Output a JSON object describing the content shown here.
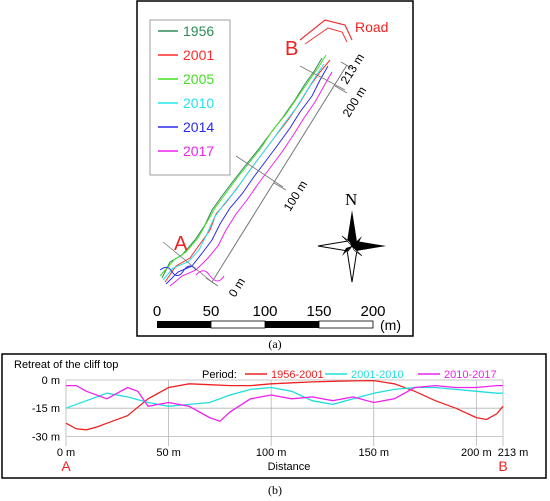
{
  "map": {
    "legend": [
      {
        "year": "1956",
        "color": "#2e8b57"
      },
      {
        "year": "2001",
        "color": "#ff2a2a"
      },
      {
        "year": "2005",
        "color": "#44dd22"
      },
      {
        "year": "2010",
        "color": "#22e5f0"
      },
      {
        "year": "2014",
        "color": "#2a2aee"
      },
      {
        "year": "2017",
        "color": "#ee22ee"
      }
    ],
    "road_label": "Road",
    "point_a": "A",
    "point_b": "B",
    "transect_ticks": [
      "0 m",
      "100 m",
      "200 m",
      "213 m"
    ],
    "north_label": "N",
    "scale_ticks": [
      "0",
      "50",
      "100",
      "150",
      "200"
    ],
    "scale_unit": "(m)"
  },
  "caption_a": "(a)",
  "caption_b": "(b)",
  "chart_data": {
    "type": "line",
    "title": "Retreat of the cliff top",
    "legend_title": "Period:",
    "xlabel": "Distance",
    "x_ticks": [
      "0 m",
      "50 m",
      "100 m",
      "150 m",
      "200 m",
      "213 m"
    ],
    "y_ticks": [
      "0 m",
      "-15 m",
      "-30 m"
    ],
    "xlim": [
      0,
      213
    ],
    "ylim": [
      -33,
      0
    ],
    "grid": true,
    "start_label": "A",
    "end_label": "B",
    "series": [
      {
        "name": "1956-2001",
        "color": "#ee2222",
        "x": [
          0,
          5,
          10,
          15,
          20,
          30,
          40,
          50,
          60,
          70,
          80,
          90,
          100,
          110,
          120,
          130,
          140,
          150,
          160,
          170,
          180,
          190,
          200,
          205,
          210,
          213
        ],
        "y": [
          -23,
          -26,
          -26.5,
          -25,
          -23,
          -19,
          -10,
          -4,
          -2,
          -2.5,
          -3,
          -3,
          -2,
          -1.5,
          -1,
          -0.7,
          -0.5,
          -0.3,
          -2,
          -6,
          -11,
          -15,
          -20,
          -21,
          -18,
          -14
        ]
      },
      {
        "name": "2001-2010",
        "color": "#22dddd",
        "x": [
          0,
          10,
          20,
          30,
          40,
          50,
          60,
          70,
          80,
          90,
          100,
          110,
          120,
          130,
          140,
          150,
          160,
          170,
          180,
          190,
          200,
          210,
          213
        ],
        "y": [
          -15,
          -11,
          -7,
          -9,
          -12,
          -14,
          -13,
          -12,
          -8,
          -5,
          -4,
          -6,
          -11,
          -13,
          -10,
          -7,
          -5,
          -4,
          -4,
          -5,
          -6,
          -7,
          -7
        ]
      },
      {
        "name": "2010-2017",
        "color": "#ee22ee",
        "x": [
          0,
          5,
          10,
          20,
          30,
          35,
          40,
          50,
          60,
          70,
          75,
          80,
          90,
          100,
          110,
          120,
          130,
          140,
          150,
          160,
          170,
          180,
          190,
          200,
          210,
          213
        ],
        "y": [
          -3,
          -3,
          -6,
          -10,
          -4,
          -6,
          -14,
          -12,
          -14,
          -20,
          -22,
          -17,
          -10,
          -8,
          -10,
          -9,
          -11,
          -9,
          -12,
          -10,
          -4,
          -3,
          -4,
          -4,
          -3,
          -3
        ]
      }
    ]
  }
}
